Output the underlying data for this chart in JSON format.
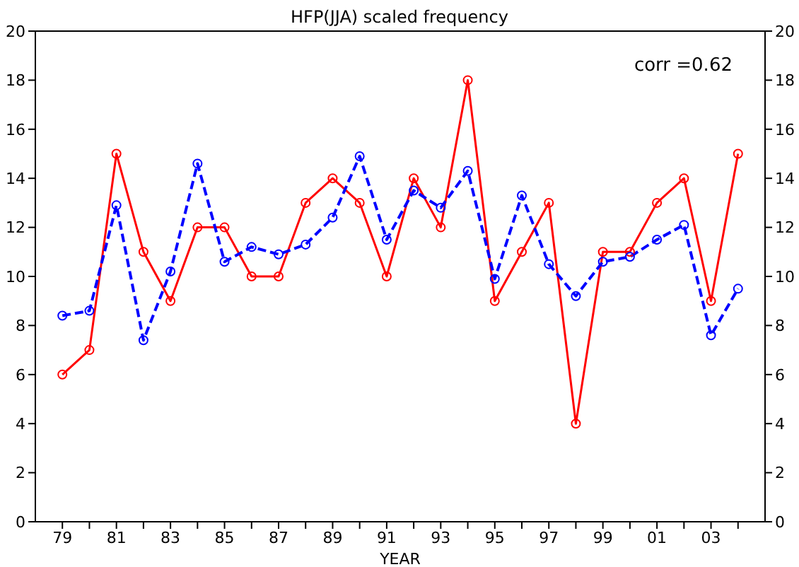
{
  "chart_data": {
    "type": "line",
    "title": "HFP(JJA) scaled frequency",
    "xlabel": "YEAR",
    "categories": [
      "79",
      null,
      "81",
      null,
      "83",
      null,
      "85",
      null,
      "87",
      null,
      "89",
      null,
      "91",
      null,
      "93",
      null,
      "95",
      null,
      "97",
      null,
      "99",
      null,
      "01",
      null,
      "03",
      null
    ],
    "series": [
      {
        "color": "#ff0000",
        "line_style": "solid",
        "values": [
          6,
          7,
          15,
          11,
          9,
          12,
          12,
          10,
          10,
          13,
          14,
          13,
          10,
          14,
          12,
          18,
          9,
          11,
          13,
          4,
          11,
          11,
          13,
          14,
          9,
          15
        ]
      },
      {
        "color": "#0000ff",
        "line_style": "dashed",
        "values": [
          8.4,
          8.6,
          12.9,
          7.4,
          10.2,
          14.6,
          10.6,
          11.2,
          10.9,
          11.3,
          12.4,
          14.9,
          11.5,
          13.5,
          12.8,
          14.3,
          9.9,
          13.3,
          10.5,
          9.2,
          10.6,
          10.8,
          11.5,
          12.1,
          7.6,
          9.5
        ]
      }
    ],
    "ylim": [
      0,
      20
    ],
    "yticks": [
      0,
      2,
      4,
      6,
      8,
      10,
      12,
      14,
      16,
      18,
      20
    ],
    "y2lim": [
      0,
      20
    ],
    "y2ticks": [
      0,
      2,
      4,
      6,
      8,
      10,
      12,
      14,
      16,
      18,
      20
    ],
    "annotations": [
      "corr =0.62"
    ],
    "marker": "circle",
    "grid": false,
    "legend": false
  }
}
